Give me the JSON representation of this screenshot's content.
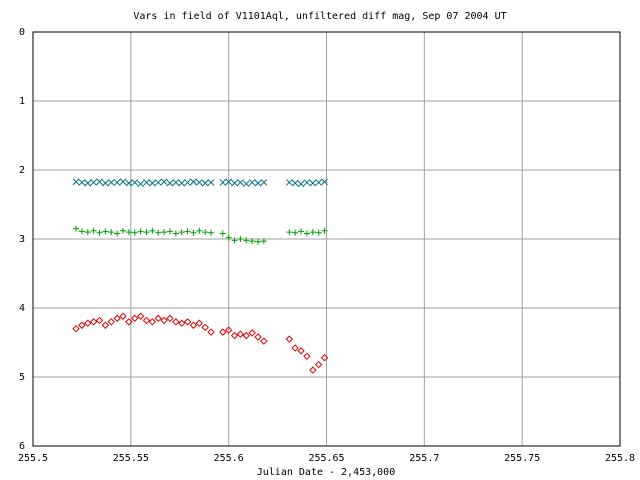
{
  "chart_data": {
    "type": "scatter",
    "title": "Vars in field of V1101Aql, unfiltered diff mag, Sep 07 2004 UT",
    "x_label": "Julian Date - 2,453,000",
    "xlim": [
      255.5,
      255.8
    ],
    "xticks": [
      255.5,
      255.55,
      255.6,
      255.65,
      255.7,
      255.75,
      255.8
    ],
    "ylim": [
      0,
      6
    ],
    "yticks": [
      0,
      1,
      2,
      3,
      4,
      5,
      6
    ],
    "y_inverted": true,
    "grid": true,
    "x": [
      255.522,
      255.525,
      255.528,
      255.531,
      255.534,
      255.537,
      255.54,
      255.543,
      255.546,
      255.549,
      255.552,
      255.555,
      255.558,
      255.561,
      255.564,
      255.567,
      255.57,
      255.573,
      255.576,
      255.579,
      255.582,
      255.585,
      255.588,
      255.591,
      255.597,
      255.6,
      255.603,
      255.606,
      255.609,
      255.612,
      255.615,
      255.618,
      255.631,
      255.634,
      255.637,
      255.64,
      255.643,
      255.646,
      255.649
    ],
    "series": [
      {
        "marker": "diamond",
        "color": "#e00000",
        "values": [
          4.3,
          4.25,
          4.22,
          4.2,
          4.18,
          4.25,
          4.2,
          4.15,
          4.12,
          4.2,
          4.15,
          4.12,
          4.18,
          4.2,
          4.15,
          4.18,
          4.15,
          4.2,
          4.22,
          4.2,
          4.25,
          4.22,
          4.28,
          4.35,
          4.35,
          4.32,
          4.4,
          4.38,
          4.4,
          4.36,
          4.42,
          4.48,
          4.45,
          4.58,
          4.62,
          4.7,
          4.9,
          4.82,
          4.72
        ]
      },
      {
        "marker": "plus",
        "color": "#00a000",
        "values": [
          2.85,
          2.89,
          2.9,
          2.88,
          2.91,
          2.89,
          2.9,
          2.92,
          2.88,
          2.9,
          2.91,
          2.89,
          2.9,
          2.88,
          2.91,
          2.9,
          2.89,
          2.92,
          2.9,
          2.89,
          2.91,
          2.88,
          2.9,
          2.91,
          2.92,
          2.98,
          3.02,
          3.0,
          3.02,
          3.03,
          3.04,
          3.03,
          2.9,
          2.91,
          2.89,
          2.92,
          2.9,
          2.91,
          2.88
        ]
      },
      {
        "marker": "cross",
        "color": "#006f8a",
        "values": [
          2.17,
          2.18,
          2.19,
          2.18,
          2.17,
          2.19,
          2.18,
          2.18,
          2.17,
          2.19,
          2.18,
          2.2,
          2.18,
          2.19,
          2.18,
          2.17,
          2.19,
          2.18,
          2.19,
          2.18,
          2.17,
          2.18,
          2.19,
          2.18,
          2.18,
          2.17,
          2.19,
          2.18,
          2.2,
          2.18,
          2.19,
          2.18,
          2.18,
          2.19,
          2.2,
          2.18,
          2.19,
          2.18,
          2.17
        ]
      }
    ]
  }
}
